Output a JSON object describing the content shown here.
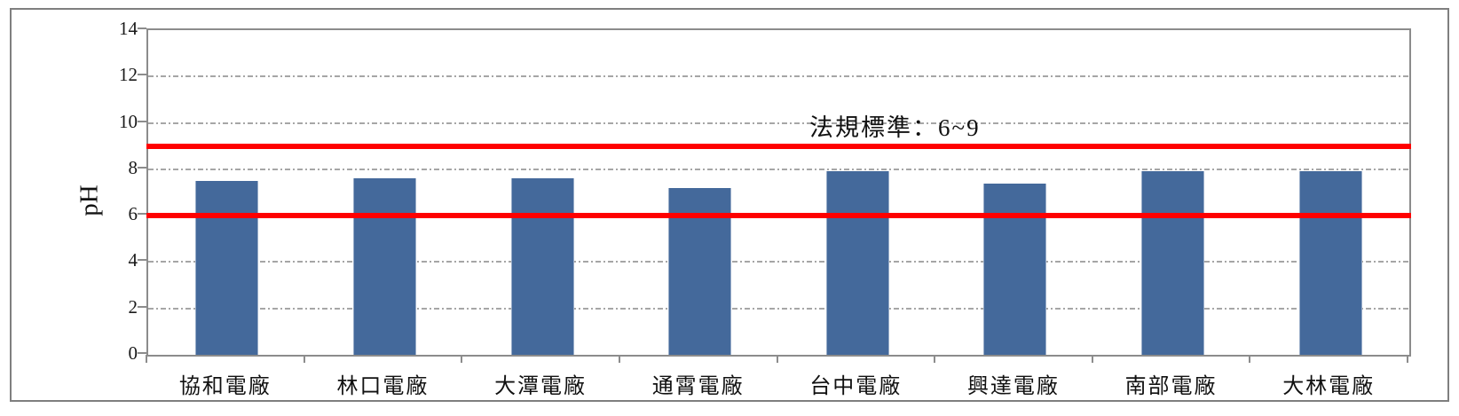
{
  "figure": {
    "border_color": "#7f7f7f",
    "background": "#ffffff"
  },
  "chart_data": {
    "type": "bar",
    "categories": [
      "協和電廠",
      "林口電廠",
      "大潭電廠",
      "通霄電廠",
      "台中電廠",
      "興達電廠",
      "南部電廠",
      "大林電廠"
    ],
    "values": [
      7.5,
      7.6,
      7.6,
      7.2,
      7.9,
      7.4,
      7.9,
      7.9
    ],
    "title": "",
    "xlabel": "",
    "ylabel": "pH",
    "ylim": [
      0,
      14
    ],
    "yticks": [
      0,
      2,
      4,
      6,
      8,
      10,
      12,
      14
    ],
    "grid": "horizontal dash-dot gridlines at every 2 pH units",
    "legend_position": "none",
    "bar_color": "#44699b",
    "gridline_color": "#a6a6a6",
    "axis_color": "#8c8c8c",
    "annotation": {
      "text": "法規標準：6~9",
      "color": "#111111"
    },
    "limit_lines": [
      {
        "value": 6,
        "color": "#ff0000"
      },
      {
        "value": 9,
        "color": "#ff0000"
      }
    ]
  }
}
